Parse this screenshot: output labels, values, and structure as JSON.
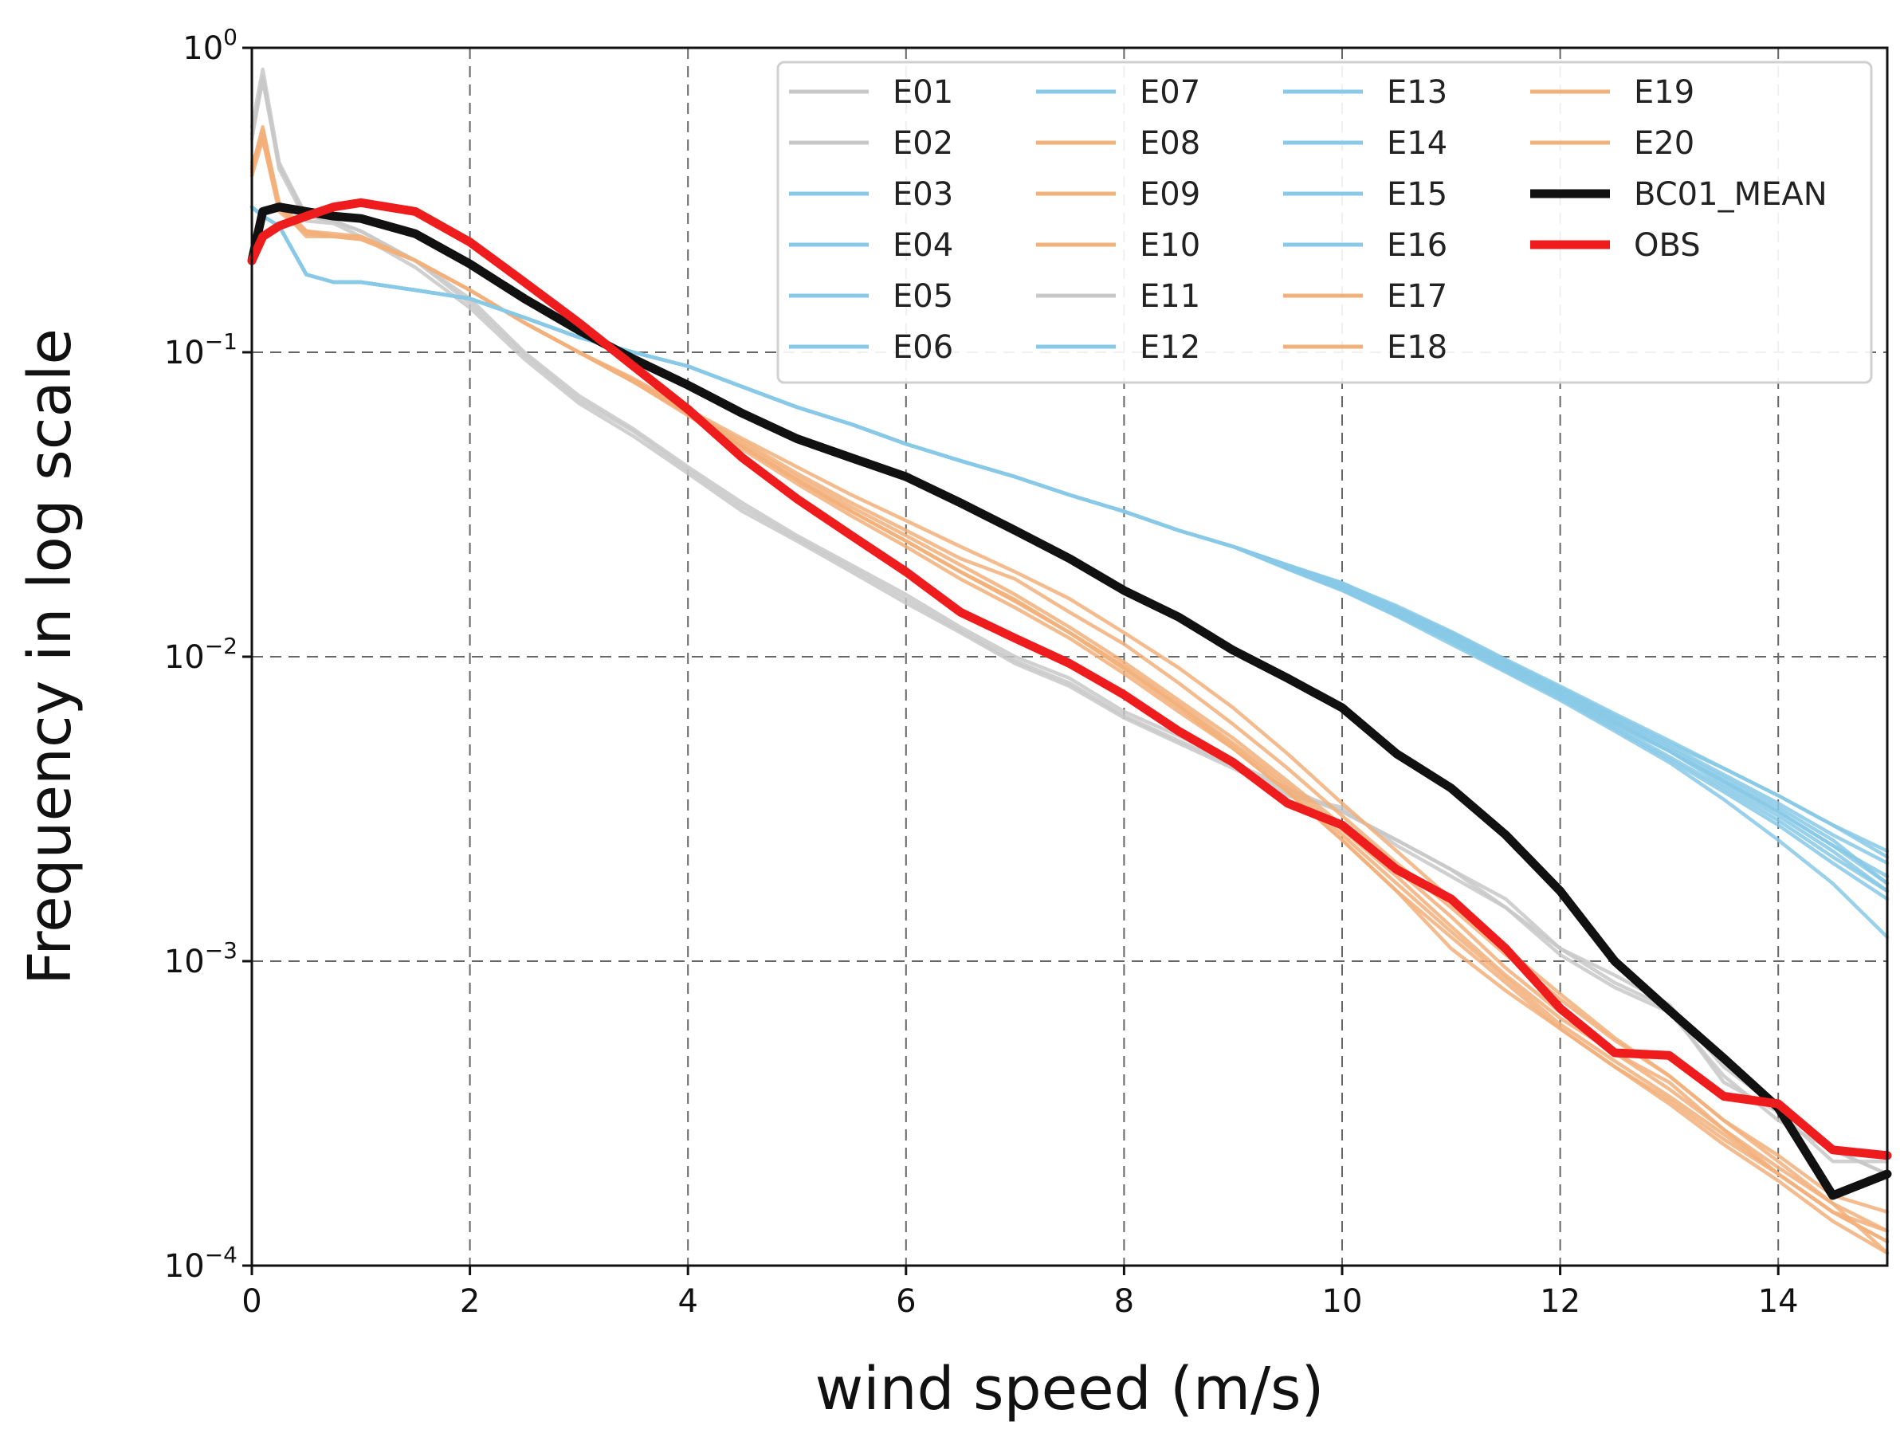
{
  "chart_data": {
    "type": "line",
    "xlabel": "wind speed (m/s)",
    "ylabel": "Frequency in log scale",
    "xlim": [
      0,
      15
    ],
    "ylim": [
      0.0001,
      1
    ],
    "yscale": "log",
    "grid": true,
    "legend_position": "top-right",
    "legend_columns": 4,
    "x_ticks": [
      0,
      2,
      4,
      6,
      8,
      10,
      12,
      14
    ],
    "x_tick_labels": [
      "0",
      "2",
      "4",
      "6",
      "8",
      "10",
      "12",
      "14"
    ],
    "y_ticks": [
      1,
      0.1,
      0.01,
      0.001,
      0.0001
    ],
    "y_tick_labels": [
      {
        "base": "10",
        "exp": "0"
      },
      {
        "base": "10",
        "exp": "−1"
      },
      {
        "base": "10",
        "exp": "−2"
      },
      {
        "base": "10",
        "exp": "−3"
      },
      {
        "base": "10",
        "exp": "−4"
      }
    ],
    "x": [
      0,
      0.1,
      0.25,
      0.5,
      0.75,
      1,
      1.5,
      2,
      2.5,
      3,
      3.5,
      4,
      4.5,
      5,
      5.5,
      6,
      6.5,
      7,
      7.5,
      8,
      8.5,
      9,
      9.5,
      10,
      10.5,
      11,
      11.5,
      12,
      12.5,
      13,
      13.5,
      14,
      14.5,
      15
    ],
    "series": [
      {
        "name": "E01",
        "color": "#c8c8c8",
        "group": "gray",
        "values": [
          0.55,
          0.85,
          0.42,
          0.28,
          0.27,
          0.25,
          0.2,
          0.15,
          0.1,
          0.072,
          0.056,
          0.042,
          0.032,
          0.025,
          0.02,
          0.016,
          0.0125,
          0.01,
          0.0085,
          0.0066,
          0.0055,
          0.0045,
          0.0037,
          0.0031,
          0.0025,
          0.002,
          0.0016,
          0.0011,
          0.00085,
          0.0007,
          0.0004,
          0.00032,
          0.00022,
          0.00022
        ]
      },
      {
        "name": "E02",
        "color": "#c8c8c8",
        "group": "gray",
        "values": [
          0.5,
          0.8,
          0.4,
          0.27,
          0.265,
          0.24,
          0.19,
          0.14,
          0.095,
          0.068,
          0.053,
          0.04,
          0.03,
          0.024,
          0.019,
          0.015,
          0.012,
          0.0095,
          0.008,
          0.0063,
          0.0052,
          0.0043,
          0.0035,
          0.0032,
          0.0024,
          0.0019,
          0.0015,
          0.00105,
          0.00082,
          0.00068,
          0.00042,
          0.0003,
          0.00024,
          0.0002
        ]
      },
      {
        "name": "E03",
        "color": "#87c9e6",
        "group": "blue",
        "values": [
          0.3,
          0.28,
          0.26,
          0.18,
          0.17,
          0.17,
          0.16,
          0.15,
          0.13,
          0.112,
          0.1,
          0.09,
          0.077,
          0.066,
          0.058,
          0.05,
          0.044,
          0.039,
          0.034,
          0.03,
          0.026,
          0.023,
          0.02,
          0.0175,
          0.0145,
          0.012,
          0.0097,
          0.0079,
          0.0064,
          0.0052,
          0.0043,
          0.0035,
          0.0028,
          0.0023
        ]
      },
      {
        "name": "E04",
        "color": "#87c9e6",
        "group": "blue",
        "values": [
          0.3,
          0.28,
          0.26,
          0.18,
          0.17,
          0.17,
          0.16,
          0.15,
          0.13,
          0.112,
          0.1,
          0.09,
          0.077,
          0.066,
          0.058,
          0.05,
          0.044,
          0.039,
          0.034,
          0.03,
          0.026,
          0.023,
          0.0198,
          0.017,
          0.014,
          0.0114,
          0.0092,
          0.0075,
          0.006,
          0.0049,
          0.0039,
          0.0031,
          0.0024,
          0.0019
        ]
      },
      {
        "name": "E05",
        "color": "#87c9e6",
        "group": "blue",
        "values": [
          0.3,
          0.28,
          0.26,
          0.18,
          0.17,
          0.17,
          0.16,
          0.15,
          0.13,
          0.112,
          0.1,
          0.09,
          0.077,
          0.066,
          0.058,
          0.05,
          0.044,
          0.039,
          0.034,
          0.03,
          0.026,
          0.023,
          0.02,
          0.0172,
          0.0143,
          0.0118,
          0.0095,
          0.0077,
          0.0062,
          0.005,
          0.004,
          0.0032,
          0.0025,
          0.0018
        ]
      },
      {
        "name": "E06",
        "color": "#87c9e6",
        "group": "blue",
        "values": [
          0.3,
          0.28,
          0.26,
          0.18,
          0.17,
          0.17,
          0.16,
          0.15,
          0.13,
          0.112,
          0.1,
          0.09,
          0.077,
          0.066,
          0.058,
          0.05,
          0.044,
          0.039,
          0.034,
          0.03,
          0.026,
          0.023,
          0.0195,
          0.0166,
          0.0137,
          0.0112,
          0.009,
          0.0073,
          0.0058,
          0.0046,
          0.0036,
          0.0028,
          0.0021,
          0.0016
        ]
      },
      {
        "name": "E07",
        "color": "#87c9e6",
        "group": "blue",
        "values": [
          0.3,
          0.28,
          0.26,
          0.18,
          0.17,
          0.17,
          0.16,
          0.15,
          0.13,
          0.112,
          0.1,
          0.09,
          0.077,
          0.066,
          0.058,
          0.05,
          0.044,
          0.039,
          0.034,
          0.03,
          0.026,
          0.023,
          0.0196,
          0.0168,
          0.014,
          0.0116,
          0.0094,
          0.0076,
          0.0061,
          0.0049,
          0.0038,
          0.003,
          0.0023,
          0.0017
        ]
      },
      {
        "name": "E08",
        "color": "#f2b07a",
        "group": "orange",
        "values": [
          0.4,
          0.55,
          0.3,
          0.24,
          0.24,
          0.24,
          0.2,
          0.16,
          0.125,
          0.1,
          0.08,
          0.062,
          0.048,
          0.037,
          0.029,
          0.023,
          0.018,
          0.0145,
          0.0115,
          0.0088,
          0.0066,
          0.005,
          0.0036,
          0.0025,
          0.0017,
          0.0011,
          0.0008,
          0.0006,
          0.00045,
          0.00035,
          0.00026,
          0.0002,
          0.00015,
          0.00013
        ]
      },
      {
        "name": "E09",
        "color": "#f2b07a",
        "group": "orange",
        "values": [
          0.4,
          0.52,
          0.3,
          0.25,
          0.24,
          0.235,
          0.2,
          0.16,
          0.125,
          0.1,
          0.081,
          0.064,
          0.051,
          0.04,
          0.032,
          0.026,
          0.021,
          0.018,
          0.014,
          0.011,
          0.0082,
          0.006,
          0.0043,
          0.003,
          0.0021,
          0.0015,
          0.00105,
          0.00075,
          0.00055,
          0.00042,
          0.0003,
          0.00022,
          0.00016,
          0.00011
        ]
      },
      {
        "name": "E10",
        "color": "#f2b07a",
        "group": "orange",
        "values": [
          0.38,
          0.5,
          0.29,
          0.245,
          0.24,
          0.24,
          0.2,
          0.16,
          0.125,
          0.1,
          0.08,
          0.063,
          0.049,
          0.038,
          0.03,
          0.024,
          0.019,
          0.0153,
          0.012,
          0.0093,
          0.007,
          0.0052,
          0.0038,
          0.0027,
          0.0019,
          0.0013,
          0.0009,
          0.00065,
          0.0005,
          0.0004,
          0.00028,
          0.0002,
          0.00015,
          0.00012
        ]
      },
      {
        "name": "E11",
        "color": "#c8c8c8",
        "group": "gray",
        "values": [
          0.52,
          0.78,
          0.41,
          0.28,
          0.27,
          0.25,
          0.2,
          0.145,
          0.098,
          0.07,
          0.055,
          0.041,
          0.031,
          0.0245,
          0.0195,
          0.0155,
          0.0122,
          0.0097,
          0.0082,
          0.0064,
          0.0053,
          0.0044,
          0.0036,
          0.0031,
          0.0025,
          0.002,
          0.0015,
          0.0011,
          0.0009,
          0.00072,
          0.00045,
          0.00033,
          0.00024,
          0.0002
        ]
      },
      {
        "name": "E12",
        "color": "#87c9e6",
        "group": "blue",
        "values": [
          0.3,
          0.28,
          0.26,
          0.18,
          0.17,
          0.17,
          0.16,
          0.15,
          0.13,
          0.112,
          0.1,
          0.09,
          0.077,
          0.066,
          0.058,
          0.05,
          0.044,
          0.039,
          0.034,
          0.03,
          0.026,
          0.023,
          0.0194,
          0.0165,
          0.0136,
          0.011,
          0.0089,
          0.0072,
          0.0057,
          0.0045,
          0.0034,
          0.0025,
          0.0018,
          0.0012
        ]
      },
      {
        "name": "E13",
        "color": "#87c9e6",
        "group": "blue",
        "values": [
          0.3,
          0.28,
          0.26,
          0.18,
          0.17,
          0.17,
          0.16,
          0.15,
          0.13,
          0.112,
          0.1,
          0.09,
          0.077,
          0.066,
          0.058,
          0.05,
          0.044,
          0.039,
          0.034,
          0.03,
          0.026,
          0.023,
          0.0199,
          0.0173,
          0.0145,
          0.0119,
          0.0096,
          0.0078,
          0.0063,
          0.0051,
          0.0041,
          0.0033,
          0.0026,
          0.0021
        ]
      },
      {
        "name": "E14",
        "color": "#87c9e6",
        "group": "blue",
        "values": [
          0.3,
          0.28,
          0.26,
          0.18,
          0.17,
          0.17,
          0.16,
          0.15,
          0.13,
          0.112,
          0.1,
          0.09,
          0.077,
          0.066,
          0.058,
          0.05,
          0.044,
          0.039,
          0.034,
          0.03,
          0.026,
          0.023,
          0.0197,
          0.0169,
          0.0141,
          0.0117,
          0.0093,
          0.0076,
          0.0061,
          0.0049,
          0.0039,
          0.0031,
          0.0024,
          0.0018
        ]
      },
      {
        "name": "E15",
        "color": "#87c9e6",
        "group": "blue",
        "values": [
          0.3,
          0.28,
          0.26,
          0.18,
          0.17,
          0.17,
          0.16,
          0.15,
          0.13,
          0.112,
          0.1,
          0.09,
          0.077,
          0.066,
          0.058,
          0.05,
          0.044,
          0.039,
          0.034,
          0.03,
          0.026,
          0.023,
          0.02,
          0.0174,
          0.0147,
          0.0121,
          0.0098,
          0.008,
          0.0065,
          0.0053,
          0.0043,
          0.0035,
          0.0028,
          0.0022
        ]
      },
      {
        "name": "E16",
        "color": "#87c9e6",
        "group": "blue",
        "values": [
          0.3,
          0.28,
          0.26,
          0.18,
          0.17,
          0.17,
          0.16,
          0.15,
          0.13,
          0.112,
          0.1,
          0.09,
          0.077,
          0.066,
          0.058,
          0.05,
          0.044,
          0.039,
          0.034,
          0.03,
          0.026,
          0.023,
          0.0196,
          0.0167,
          0.0138,
          0.0113,
          0.0091,
          0.0074,
          0.0059,
          0.0047,
          0.0037,
          0.0029,
          0.0022,
          0.0017
        ]
      },
      {
        "name": "E17",
        "color": "#f2b07a",
        "group": "orange",
        "values": [
          0.42,
          0.5,
          0.3,
          0.25,
          0.245,
          0.24,
          0.2,
          0.16,
          0.125,
          0.1,
          0.082,
          0.065,
          0.052,
          0.042,
          0.034,
          0.028,
          0.023,
          0.019,
          0.0155,
          0.012,
          0.0092,
          0.0068,
          0.0048,
          0.0033,
          0.0023,
          0.0016,
          0.0011,
          0.00078,
          0.00056,
          0.00042,
          0.0003,
          0.00023,
          0.00017,
          0.00015
        ]
      },
      {
        "name": "E18",
        "color": "#f2b07a",
        "group": "orange",
        "values": [
          0.39,
          0.54,
          0.31,
          0.25,
          0.24,
          0.24,
          0.2,
          0.16,
          0.125,
          0.1,
          0.08,
          0.063,
          0.049,
          0.038,
          0.03,
          0.024,
          0.019,
          0.0152,
          0.012,
          0.0091,
          0.0068,
          0.005,
          0.0036,
          0.0025,
          0.0017,
          0.0012,
          0.00085,
          0.0006,
          0.00045,
          0.00034,
          0.00025,
          0.00019,
          0.00014,
          0.00011
        ]
      },
      {
        "name": "E19",
        "color": "#f2b07a",
        "group": "orange",
        "values": [
          0.4,
          0.53,
          0.3,
          0.25,
          0.24,
          0.235,
          0.2,
          0.16,
          0.125,
          0.1,
          0.081,
          0.064,
          0.05,
          0.039,
          0.031,
          0.025,
          0.02,
          0.016,
          0.0125,
          0.0096,
          0.0072,
          0.0054,
          0.0039,
          0.0028,
          0.002,
          0.0014,
          0.00095,
          0.00068,
          0.0005,
          0.00038,
          0.00028,
          0.00021,
          0.00016,
          0.00013
        ]
      },
      {
        "name": "E20",
        "color": "#f2b07a",
        "group": "orange",
        "values": [
          0.41,
          0.51,
          0.3,
          0.245,
          0.24,
          0.24,
          0.2,
          0.16,
          0.125,
          0.1,
          0.08,
          0.063,
          0.049,
          0.038,
          0.03,
          0.024,
          0.019,
          0.0154,
          0.012,
          0.0092,
          0.0069,
          0.0051,
          0.0037,
          0.0026,
          0.0018,
          0.00125,
          0.00088,
          0.00062,
          0.00047,
          0.00036,
          0.00027,
          0.0002,
          0.00015,
          0.00012
        ]
      },
      {
        "name": "BC01_MEAN",
        "color": "#111111",
        "group": "mean",
        "values": [
          0.2,
          0.29,
          0.3,
          0.29,
          0.28,
          0.275,
          0.245,
          0.195,
          0.15,
          0.118,
          0.095,
          0.078,
          0.063,
          0.052,
          0.045,
          0.039,
          0.032,
          0.026,
          0.021,
          0.0165,
          0.0135,
          0.0105,
          0.0085,
          0.0068,
          0.0048,
          0.0037,
          0.0026,
          0.0017,
          0.001,
          0.00069,
          0.00048,
          0.00033,
          0.00017,
          0.0002
        ]
      },
      {
        "name": "OBS",
        "color": "#ee1c1c",
        "group": "obs",
        "values": [
          0.2,
          0.24,
          0.26,
          0.28,
          0.3,
          0.31,
          0.29,
          0.23,
          0.17,
          0.125,
          0.09,
          0.065,
          0.045,
          0.033,
          0.025,
          0.019,
          0.014,
          0.0115,
          0.0095,
          0.0075,
          0.0057,
          0.0045,
          0.0033,
          0.0028,
          0.002,
          0.0016,
          0.0011,
          0.0007,
          0.0005,
          0.00049,
          0.00036,
          0.00034,
          0.00024,
          0.00023
        ]
      }
    ]
  }
}
